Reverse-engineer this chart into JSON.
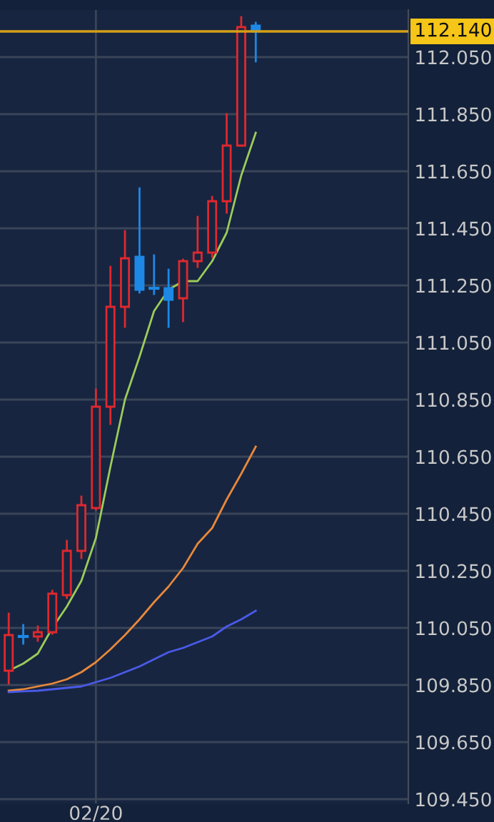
{
  "chart_data": {
    "type": "candlestick",
    "categories": [
      null,
      null,
      null,
      null,
      null,
      null,
      "02/20",
      null,
      null,
      null,
      null,
      null,
      null,
      null,
      null,
      null,
      null,
      null
    ],
    "ohlc": [
      [
        109.9,
        110.1,
        109.855,
        110.025
      ],
      [
        110.02,
        110.06,
        109.995,
        110.02
      ],
      [
        110.02,
        110.055,
        110.005,
        110.035
      ],
      [
        110.035,
        110.18,
        110.03,
        110.17
      ],
      [
        110.165,
        110.355,
        110.155,
        110.32
      ],
      [
        110.32,
        110.51,
        110.295,
        110.48
      ],
      [
        110.47,
        110.885,
        110.465,
        110.825
      ],
      [
        110.825,
        111.315,
        110.765,
        111.175
      ],
      [
        111.175,
        111.44,
        111.105,
        111.345
      ],
      [
        111.35,
        111.59,
        111.225,
        111.235
      ],
      [
        111.24,
        111.355,
        111.22,
        111.24
      ],
      [
        111.24,
        111.305,
        111.105,
        111.2
      ],
      [
        111.205,
        111.34,
        111.125,
        111.335
      ],
      [
        111.335,
        111.49,
        111.315,
        111.365
      ],
      [
        111.365,
        111.56,
        111.35,
        111.545
      ],
      [
        111.545,
        111.85,
        111.505,
        111.74
      ],
      [
        111.74,
        112.19,
        111.74,
        112.155
      ],
      [
        112.16,
        112.17,
        112.035,
        112.14
      ]
    ],
    "colors": [
      "#e0282e",
      "#1e88e5",
      "#e0282e",
      "#e0282e",
      "#e0282e",
      "#e0282e",
      "#e0282e",
      "#e0282e",
      "#e0282e",
      "#1e88e5",
      "#1e88e5",
      "#1e88e5",
      "#e0282e",
      "#e0282e",
      "#e0282e",
      "#e0282e",
      "#e0282e",
      "#1e88e5"
    ],
    "series": [
      {
        "type": "line",
        "color": "#9ccc5a",
        "values": [
          109.9,
          109.925,
          109.96,
          110.05,
          110.125,
          110.215,
          110.365,
          110.615,
          110.85,
          111.0,
          111.16,
          111.235,
          111.265,
          111.265,
          111.335,
          111.435,
          111.635,
          111.785
        ]
      },
      {
        "type": "line",
        "color": "#e8883a",
        "values": [
          109.83,
          109.835,
          109.845,
          109.855,
          109.87,
          109.895,
          109.93,
          109.975,
          110.025,
          110.08,
          110.14,
          110.195,
          110.26,
          110.345,
          110.4,
          110.5,
          110.59,
          110.685
        ]
      },
      {
        "type": "line",
        "color": "#4a5ae8",
        "values": [
          109.825,
          109.828,
          109.83,
          109.835,
          109.84,
          109.845,
          109.86,
          109.875,
          109.895,
          109.915,
          109.94,
          109.965,
          109.98,
          110.0,
          110.02,
          110.055,
          110.08,
          110.11
        ]
      }
    ],
    "ylim": [
      109.435,
      112.215
    ],
    "yticks": [
      {
        "value": 109.45,
        "label": "109.450"
      },
      {
        "value": 109.65,
        "label": "109.650"
      },
      {
        "value": 109.85,
        "label": "109.850"
      },
      {
        "value": 110.05,
        "label": "110.050"
      },
      {
        "value": 110.25,
        "label": "110.250"
      },
      {
        "value": 110.45,
        "label": "110.450"
      },
      {
        "value": 110.65,
        "label": "110.650"
      },
      {
        "value": 110.85,
        "label": "110.850"
      },
      {
        "value": 111.05,
        "label": "111.050"
      },
      {
        "value": 111.25,
        "label": "111.250"
      },
      {
        "value": 111.45,
        "label": "111.450"
      },
      {
        "value": 111.65,
        "label": "111.650"
      },
      {
        "value": 111.85,
        "label": "111.850"
      },
      {
        "value": 112.05,
        "label": "112.050"
      }
    ],
    "ref_lines": [
      {
        "axis": "y",
        "value": 112.14,
        "label": "112.140",
        "color": "#d4a017"
      }
    ],
    "grid": true
  }
}
